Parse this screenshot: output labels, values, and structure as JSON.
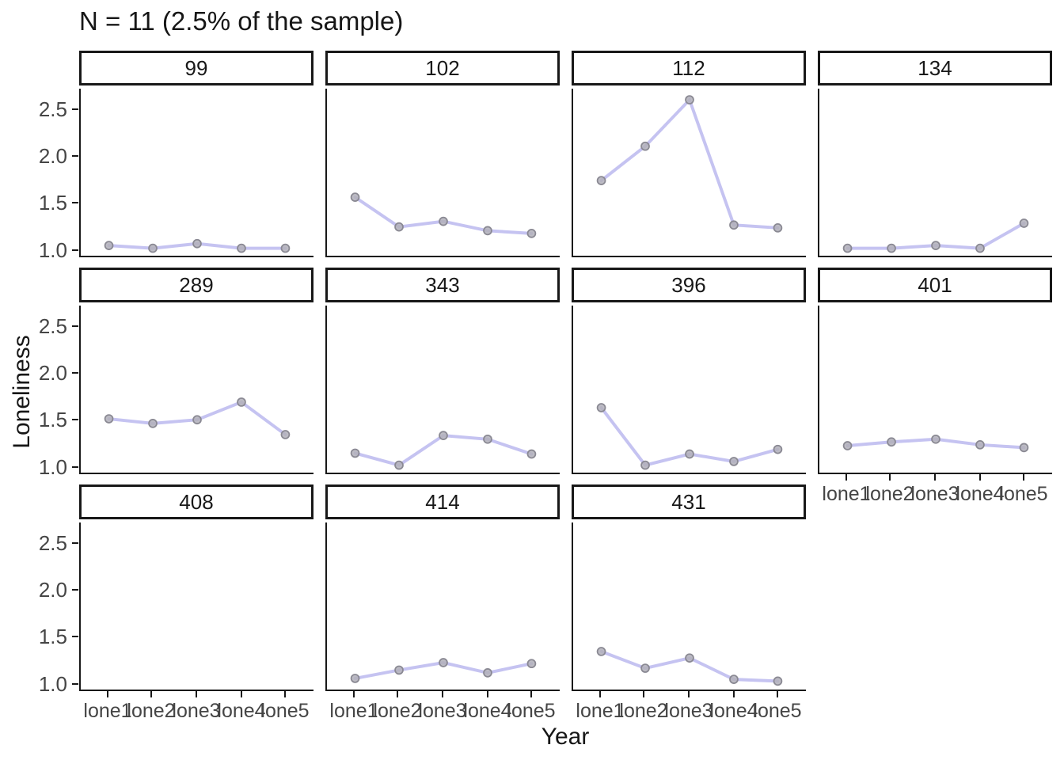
{
  "chart_data": {
    "type": "line",
    "title": "N = 11 (2.5% of the sample)",
    "xlabel": "Year",
    "ylabel": "Loneliness",
    "x_tick_labels": [
      "lone1",
      "lone2",
      "lone3",
      "lone4",
      "lone5"
    ],
    "y_ticks": [
      2.5,
      2.0,
      1.5,
      1.0
    ],
    "y_tick_labels": [
      "2.5",
      "2.0",
      "1.5",
      "1.0"
    ],
    "ylim": [
      0.92,
      2.72
    ],
    "grid": "off",
    "legend": "none",
    "layout": "facet-wrap 4 columns, 11 panels",
    "facets": [
      {
        "id": "99",
        "values": [
          1.03,
          1.0,
          1.05,
          1.0,
          1.0
        ]
      },
      {
        "id": "102",
        "values": [
          1.55,
          1.23,
          1.29,
          1.19,
          1.16
        ]
      },
      {
        "id": "112",
        "values": [
          1.73,
          2.1,
          2.6,
          1.25,
          1.22
        ]
      },
      {
        "id": "134",
        "values": [
          1.0,
          1.0,
          1.03,
          1.0,
          1.27
        ]
      },
      {
        "id": "289",
        "values": [
          1.5,
          1.45,
          1.49,
          1.68,
          1.33
        ]
      },
      {
        "id": "343",
        "values": [
          1.13,
          1.0,
          1.32,
          1.28,
          1.12
        ]
      },
      {
        "id": "396",
        "values": [
          1.62,
          1.0,
          1.12,
          1.04,
          1.17
        ]
      },
      {
        "id": "401",
        "values": [
          1.21,
          1.25,
          1.28,
          1.22,
          1.19
        ]
      },
      {
        "id": "408",
        "values": []
      },
      {
        "id": "414",
        "values": [
          1.04,
          1.13,
          1.21,
          1.1,
          1.2
        ]
      },
      {
        "id": "431",
        "values": [
          1.33,
          1.15,
          1.26,
          1.03,
          1.01
        ]
      }
    ],
    "colors": {
      "line": "#c5c3f1",
      "point_fill": "#b1b0ba",
      "point_stroke": "#8a8993",
      "axis": "#181818",
      "tick_text": "#454545"
    }
  }
}
